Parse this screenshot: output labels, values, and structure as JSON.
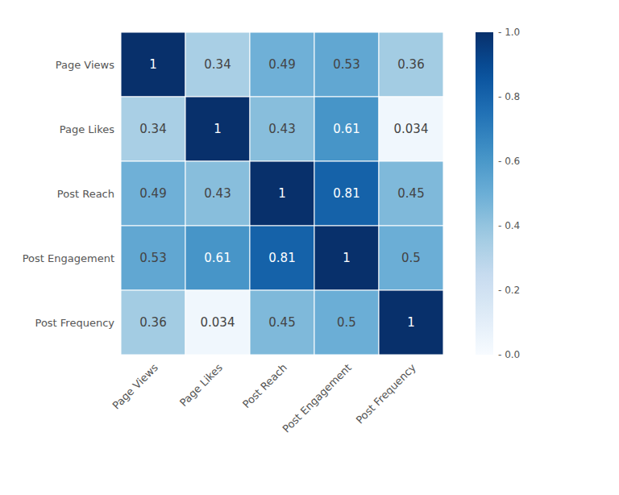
{
  "chart_data": {
    "type": "heatmap",
    "categories": [
      "Page Views",
      "Page Likes",
      "Post Reach",
      "Post Engagement",
      "Post Frequency"
    ],
    "values": [
      [
        1.0,
        0.34,
        0.49,
        0.53,
        0.36
      ],
      [
        0.34,
        1.0,
        0.43,
        0.61,
        0.034
      ],
      [
        0.49,
        0.43,
        1.0,
        0.81,
        0.45
      ],
      [
        0.53,
        0.61,
        0.81,
        1.0,
        0.5
      ],
      [
        0.36,
        0.034,
        0.45,
        0.5,
        1.0
      ]
    ],
    "value_labels": [
      [
        "1",
        "0.34",
        "0.49",
        "0.53",
        "0.36"
      ],
      [
        "0.34",
        "1",
        "0.43",
        "0.61",
        "0.034"
      ],
      [
        "0.49",
        "0.43",
        "1",
        "0.81",
        "0.45"
      ],
      [
        "0.53",
        "0.61",
        "0.81",
        "1",
        "0.5"
      ],
      [
        "0.36",
        "0.034",
        "0.45",
        "0.5",
        "1"
      ]
    ],
    "data_labels": true,
    "color_range": [
      0.0,
      1.0
    ],
    "color_ticks": [
      {
        "value": 0.0,
        "label": "- 0.0"
      },
      {
        "value": 0.2,
        "label": "- 0.2"
      },
      {
        "value": 0.4,
        "label": "- 0.4"
      },
      {
        "value": 0.6,
        "label": "- 0.6"
      },
      {
        "value": 0.8,
        "label": "- 0.8"
      },
      {
        "value": 1.0,
        "label": "- 1.0"
      }
    ]
  }
}
